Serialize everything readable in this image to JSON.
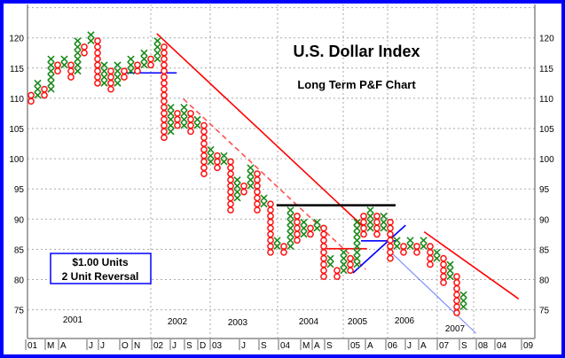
{
  "chart_data": {
    "type": "point-and-figure",
    "title": "U.S. Dollar Index",
    "subtitle": "Long Term P&F Chart",
    "box_note": [
      "$1.00 Units",
      "2 Unit Reversal"
    ],
    "ylim": [
      70,
      125
    ],
    "y_ticks": [
      75,
      80,
      85,
      90,
      95,
      100,
      105,
      110,
      115,
      120
    ],
    "grid": true,
    "colors": {
      "x": "#1a8a1a",
      "o": "#ff1010",
      "border": "#0000ff",
      "trend_red": "#ff0000",
      "trend_blue": "#0000ff",
      "resistance": "#000000"
    },
    "columns": [
      [
        "O",
        109,
        110
      ],
      [
        "X",
        110,
        112
      ],
      [
        "O",
        110,
        111
      ],
      [
        "X",
        111,
        116
      ],
      [
        "O",
        114,
        115
      ],
      [
        "X",
        115,
        116
      ],
      [
        "O",
        113,
        115
      ],
      [
        "X",
        114,
        119
      ],
      [
        "O",
        117,
        118
      ],
      [
        "X",
        119,
        120
      ],
      [
        "O",
        112,
        119
      ],
      [
        "X",
        112,
        115
      ],
      [
        "O",
        111,
        114
      ],
      [
        "X",
        112,
        115
      ],
      [
        "O",
        113,
        114
      ],
      [
        "X",
        114,
        116
      ],
      [
        "O",
        114,
        115
      ],
      [
        "X",
        115,
        117
      ],
      [
        "O",
        115,
        116
      ],
      [
        "X",
        116,
        119
      ],
      [
        "O",
        103,
        118
      ],
      [
        "X",
        104,
        108
      ],
      [
        "O",
        105,
        107
      ],
      [
        "X",
        105,
        108
      ],
      [
        "O",
        104,
        107
      ],
      [
        "X",
        105,
        106
      ],
      [
        "O",
        97,
        105
      ],
      [
        "X",
        99,
        101
      ],
      [
        "O",
        98,
        100
      ],
      [
        "X",
        99,
        100
      ],
      [
        "O",
        91,
        99
      ],
      [
        "X",
        93,
        96
      ],
      [
        "O",
        94,
        95
      ],
      [
        "X",
        95,
        98
      ],
      [
        "O",
        91,
        97
      ],
      [
        "X",
        92,
        93
      ],
      [
        "O",
        84,
        92
      ],
      [
        "X",
        85,
        86
      ],
      [
        "O",
        84,
        85
      ],
      [
        "X",
        85,
        91
      ],
      [
        "O",
        86,
        90
      ],
      [
        "X",
        87,
        89
      ],
      [
        "O",
        87,
        88
      ],
      [
        "X",
        88,
        89
      ],
      [
        "O",
        80,
        88
      ],
      [
        "X",
        82,
        83
      ],
      [
        "O",
        80,
        81
      ],
      [
        "X",
        81,
        84
      ],
      [
        "O",
        81,
        83
      ],
      [
        "X",
        82,
        89
      ],
      [
        "O",
        87,
        90
      ],
      [
        "X",
        88,
        91
      ],
      [
        "O",
        87,
        90
      ],
      [
        "X",
        88,
        90
      ],
      [
        "O",
        83,
        89
      ],
      [
        "X",
        85,
        86
      ],
      [
        "O",
        84,
        85
      ],
      [
        "X",
        85,
        86
      ],
      [
        "O",
        84,
        85
      ],
      [
        "X",
        85,
        86
      ],
      [
        "O",
        82,
        85
      ],
      [
        "X",
        83,
        84
      ],
      [
        "O",
        79,
        83
      ],
      [
        "X",
        80,
        82
      ],
      [
        "O",
        74,
        80
      ],
      [
        "X",
        75,
        77
      ]
    ],
    "trendlines": [
      {
        "name": "major-downtrend",
        "color": "#ff0000",
        "dash": false,
        "from": [
          18.9,
          120.7
        ],
        "to": [
          50.3,
          88.4
        ]
      },
      {
        "name": "inner-downtrend",
        "color": "#ff5050",
        "dash": true,
        "from": [
          22.9,
          109.9
        ],
        "to": [
          50.3,
          81.7
        ]
      },
      {
        "name": "resistance-line",
        "color": "#000000",
        "dash": false,
        "from": [
          36.9,
          92.3
        ],
        "to": [
          54.8,
          92.3
        ]
      },
      {
        "name": "support-2001",
        "color": "#0000ff",
        "dash": false,
        "from": [
          14.4,
          114.2
        ],
        "to": [
          21.9,
          114.2
        ]
      },
      {
        "name": "red-horizontal-2005",
        "color": "#ff0000",
        "dash": false,
        "from": [
          44.4,
          85.1
        ],
        "to": [
          50.5,
          85.1
        ]
      },
      {
        "name": "blue-horizontal-2005",
        "color": "#0000ff",
        "dash": false,
        "from": [
          49.6,
          86.4
        ],
        "to": [
          54.8,
          86.4
        ]
      },
      {
        "name": "uptrend-2005",
        "color": "#0000ff",
        "dash": false,
        "from": [
          48.4,
          81.1
        ],
        "to": [
          56.3,
          89.0
        ]
      },
      {
        "name": "channel-lower",
        "color": "#7080ff",
        "dash": false,
        "from": [
          54.4,
          84.2
        ],
        "to": [
          66.9,
          71.1
        ]
      },
      {
        "name": "downtrend-2007",
        "color": "#ff0000",
        "dash": false,
        "from": [
          59.1,
          87.9
        ],
        "to": [
          73.3,
          76.8
        ]
      }
    ],
    "year_labels": [
      "2001",
      "2002",
      "2003",
      "2004",
      "2005",
      "2006",
      "2007"
    ],
    "month_labels": [
      "01",
      "M",
      "A",
      "J",
      "J",
      "O",
      "N",
      "02",
      "J",
      "S",
      "D",
      "03",
      "J",
      "S",
      "04",
      "M",
      "A",
      "S",
      "05",
      "A",
      "06",
      "J",
      "A",
      "07",
      "S",
      "08",
      "04",
      "09"
    ]
  }
}
